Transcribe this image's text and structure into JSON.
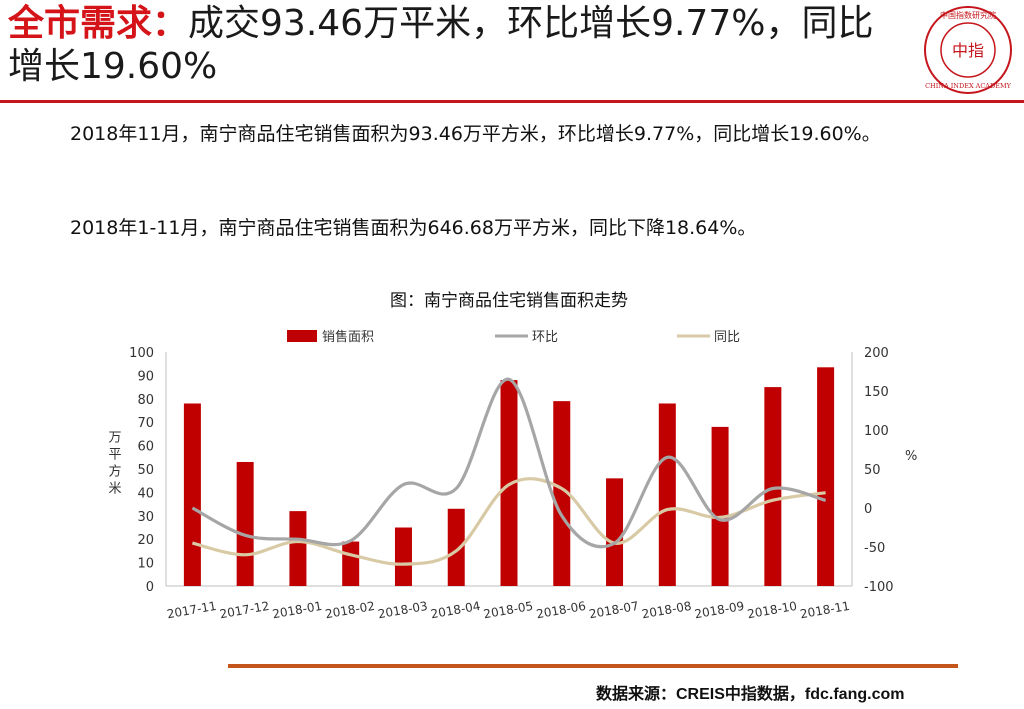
{
  "header": {
    "title_highlight": "全市需求：",
    "title_rest": "成交93.46万平米，环比增长9.77%，同比增长19.60%",
    "logo_center": "中指",
    "logo_ring_text": "CHINA INDEX ACADEMY",
    "logo_top_text": "中国指数研究院"
  },
  "body": {
    "para1": "2018年11月，南宁商品住宅销售面积为93.46万平方米，环比增长9.77%，同比增长19.60%。",
    "para2": "2018年1-11月，南宁商品住宅销售面积为646.68万平方米，同比下降18.64%。"
  },
  "chart_data": {
    "type": "bar",
    "title": "图：南宁商品住宅销售面积走势",
    "categories": [
      "2017-11",
      "2017-12",
      "2018-01",
      "2018-02",
      "2018-03",
      "2018-04",
      "2018-05",
      "2018-06",
      "2018-07",
      "2018-08",
      "2018-09",
      "2018-10",
      "2018-11"
    ],
    "series": [
      {
        "name": "销售面积",
        "kind": "bar",
        "axis": "left",
        "color": "#c00000",
        "values": [
          78,
          53,
          32,
          19,
          25,
          33,
          88,
          79,
          46,
          78,
          68,
          85,
          93.46
        ]
      },
      {
        "name": "环比",
        "kind": "line",
        "axis": "right",
        "color": "#a6a6a6",
        "values": [
          0,
          -35,
          -40,
          -42,
          30,
          25,
          165,
          -10,
          -45,
          65,
          -15,
          25,
          9.77
        ]
      },
      {
        "name": "同比",
        "kind": "line",
        "axis": "right",
        "color": "#d9caa6",
        "values": [
          -45,
          -60,
          -43,
          -60,
          -72,
          -55,
          30,
          25,
          -45,
          -2,
          -12,
          10,
          19.6
        ]
      }
    ],
    "ylabel": "万平方米",
    "y2label": "%",
    "ylim": [
      0,
      100
    ],
    "yticks": [
      0,
      10,
      20,
      30,
      40,
      50,
      60,
      70,
      80,
      90,
      100
    ],
    "y2lim": [
      -100,
      200
    ],
    "y2ticks": [
      -100,
      -50,
      0,
      50,
      100,
      150,
      200
    ],
    "legend_position": "top"
  },
  "footer": {
    "source": "数据来源：CREIS中指数据，fdc.fang.com"
  },
  "colors": {
    "accent_red": "#d41418",
    "rule_red": "#c4161c",
    "footer_rule": "#c4561c"
  }
}
